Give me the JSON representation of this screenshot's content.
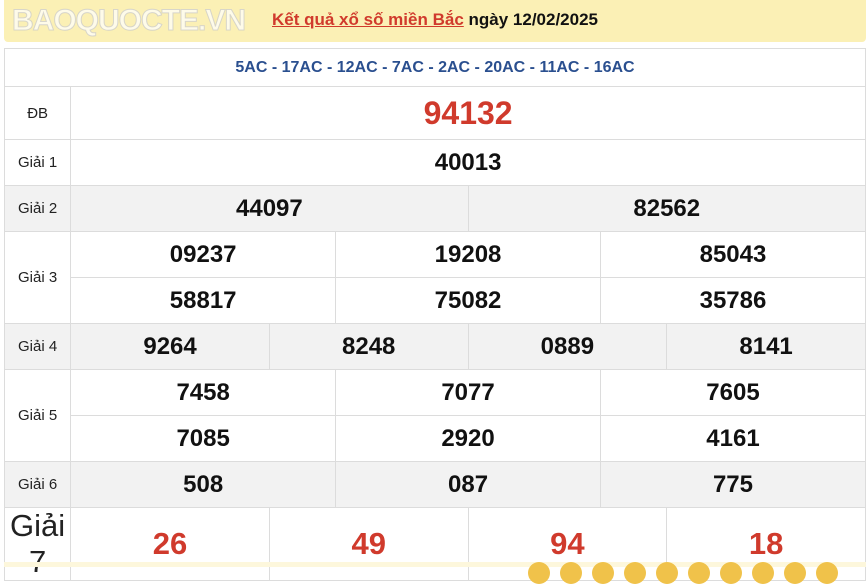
{
  "header": {
    "link": "Kết quả xổ số miền Bắc",
    "rest": " ngày 12/02/2025"
  },
  "codes": "5AC - 17AC - 12AC - 7AC - 2AC - 20AC - 11AC - 16AC",
  "prizes": {
    "db": {
      "label": "ĐB",
      "value": "94132"
    },
    "g1": {
      "label": "Giải 1",
      "values": [
        "40013"
      ]
    },
    "g2": {
      "label": "Giải 2",
      "values": [
        "44097",
        "82562"
      ]
    },
    "g3": {
      "label": "Giải 3",
      "values": [
        "09237",
        "19208",
        "85043",
        "58817",
        "75082",
        "35786"
      ]
    },
    "g4": {
      "label": "Giải 4",
      "values": [
        "9264",
        "8248",
        "0889",
        "8141"
      ]
    },
    "g5": {
      "label": "Giải 5",
      "values": [
        "7458",
        "7077",
        "7605",
        "7085",
        "2920",
        "4161"
      ]
    },
    "g6": {
      "label": "Giải 6",
      "values": [
        "508",
        "087",
        "775"
      ]
    },
    "g7": {
      "label": "Giải 7",
      "values": [
        "26",
        "49",
        "94",
        "18"
      ]
    }
  },
  "watermark": "BAOQUOCTE.VN",
  "colors": {
    "accent_red": "#d03a2c",
    "code_blue": "#2a4f8f",
    "header_bg": "#fbf0b5"
  }
}
